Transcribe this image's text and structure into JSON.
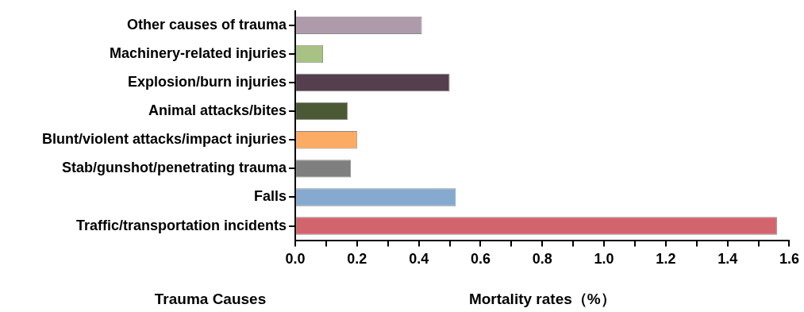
{
  "chart_data": {
    "type": "bar",
    "orientation": "horizontal",
    "xlabel": "Mortality rates（%）",
    "ylabel": "Trauma Causes",
    "categories": [
      "Other causes of trauma",
      "Machinery-related injuries",
      "Explosion/burn injuries",
      "Animal attacks/bites",
      "Blunt/violent attacks/impact injuries",
      "Stab/gunshot/penetrating trauma",
      "Falls",
      "Traffic/transportation incidents"
    ],
    "values": [
      0.41,
      0.09,
      0.5,
      0.17,
      0.2,
      0.18,
      0.52,
      1.56
    ],
    "colors": [
      "#ae9aab",
      "#a8c283",
      "#553e4d",
      "#4b5a35",
      "#fbab63",
      "#7f7f7f",
      "#86a9cf",
      "#d2646d"
    ],
    "xlim": [
      0,
      1.6
    ],
    "xticks": [
      {
        "value": 0,
        "label": "0.0"
      },
      {
        "value": 0.1,
        "label": null
      },
      {
        "value": 0.2,
        "label": "0.2"
      },
      {
        "value": 0.3,
        "label": null
      },
      {
        "value": 0.4,
        "label": "0.4"
      },
      {
        "value": 0.5,
        "label": null
      },
      {
        "value": 0.6,
        "label": "0.6"
      },
      {
        "value": 0.7,
        "label": null
      },
      {
        "value": 0.8,
        "label": "0.8"
      },
      {
        "value": 0.9,
        "label": null
      },
      {
        "value": 1.0,
        "label": "1.0"
      },
      {
        "value": 1.1,
        "label": null
      },
      {
        "value": 1.2,
        "label": "1.2"
      },
      {
        "value": 1.3,
        "label": null
      },
      {
        "value": 1.4,
        "label": "1.4"
      },
      {
        "value": 1.5,
        "label": null
      },
      {
        "value": 1.6,
        "label": "1.6"
      }
    ],
    "grid": false,
    "legend": false
  }
}
